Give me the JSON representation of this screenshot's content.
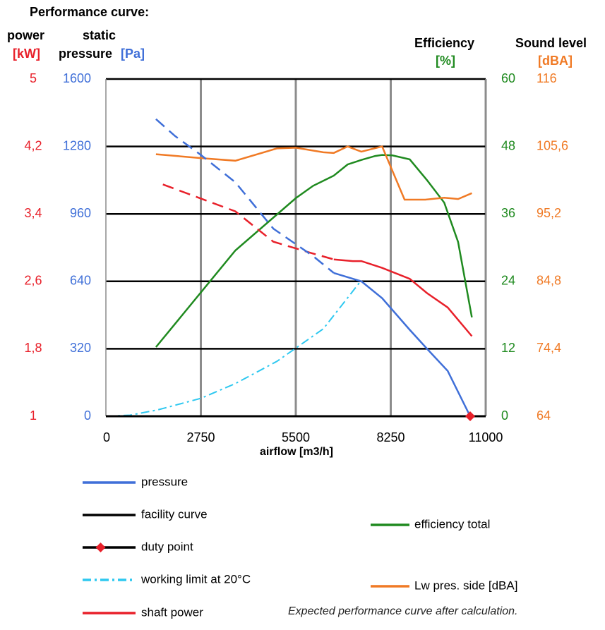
{
  "chart_data": {
    "type": "line",
    "title": "Performance curve:",
    "footer_note": "Expected performance curve after calculation.",
    "xlabel": "airflow [m3/h]",
    "x_ticks": [
      "0",
      "2750",
      "5500",
      "8250",
      "11000"
    ],
    "xlim": [
      0,
      11000
    ],
    "axes": {
      "power": {
        "label_line1": "power",
        "unit": "[kW]",
        "ticks": [
          "5",
          "4,2",
          "3,4",
          "2,6",
          "1,8",
          "1"
        ],
        "range": [
          1,
          5
        ],
        "color": "#e8202a"
      },
      "pressure": {
        "label_line1": "static",
        "label_line2": "pressure",
        "unit": "[Pa]",
        "ticks": [
          "1600",
          "1280",
          "960",
          "640",
          "320",
          "0"
        ],
        "range": [
          0,
          1600
        ],
        "color": "#3f6fd8"
      },
      "efficiency": {
        "label_line1": "Efficiency",
        "unit": "[%]",
        "ticks": [
          "60",
          "48",
          "36",
          "24",
          "12",
          "0"
        ],
        "range": [
          0,
          60
        ],
        "color": "#1f8a1f"
      },
      "sound": {
        "label_line1": "Sound level",
        "unit": "[dBA]",
        "ticks": [
          "116",
          "105,6",
          "95,2",
          "84,8",
          "74,4",
          "64"
        ],
        "range": [
          64,
          116
        ],
        "color": "#f07a25"
      }
    },
    "grid": true,
    "series": [
      {
        "name": "pressure",
        "axis": "pressure",
        "color": "#3f6fd8",
        "x": [
          1450,
          2000,
          2750,
          3750,
          4850,
          6000,
          6600,
          7400,
          8000,
          8800,
          9300,
          9900,
          10550
        ],
        "y": [
          1410,
          1330,
          1240,
          1110,
          890,
          760,
          680,
          640,
          560,
          410,
          320,
          215,
          0
        ],
        "dashed_until_x": 6600
      },
      {
        "name": "facility curve",
        "axis": "pressure",
        "color": "#000000",
        "x": [
          0,
          11000
        ],
        "y": [
          0,
          0
        ]
      },
      {
        "name": "duty point",
        "axis": "pressure",
        "color": "#e8202a",
        "x": [
          10550
        ],
        "y": [
          0
        ]
      },
      {
        "name": "working limit at 20°C",
        "axis": "pressure",
        "color": "#2ec8f0",
        "x": [
          0,
          700,
          1500,
          2750,
          3750,
          4950,
          6300,
          7350
        ],
        "y": [
          0,
          5,
          30,
          85,
          155,
          260,
          415,
          635
        ]
      },
      {
        "name": "shaft power",
        "axis": "power",
        "color": "#e8202a",
        "x": [
          1650,
          3750,
          4850,
          6000,
          6600,
          7150,
          7400,
          8000,
          8800,
          9300,
          9900,
          10600
        ],
        "y": [
          3.75,
          3.43,
          3.07,
          2.93,
          2.86,
          2.84,
          2.84,
          2.76,
          2.63,
          2.46,
          2.29,
          1.95
        ],
        "dashed_until_x": 6600
      },
      {
        "name": "efficiency total",
        "axis": "efficiency",
        "color": "#1f8a1f",
        "x": [
          1450,
          3750,
          5500,
          6000,
          6600,
          7000,
          7400,
          7800,
          8000,
          8300,
          8800,
          9300,
          9800,
          10200,
          10600
        ],
        "y": [
          12.3,
          29.5,
          38.8,
          41.0,
          42.8,
          44.8,
          45.6,
          46.3,
          46.5,
          46.4,
          45.7,
          42.0,
          38.0,
          31.0,
          17.6
        ]
      },
      {
        "name": "Lw pres. side [dBA]",
        "axis": "sound",
        "color": "#f07a25",
        "x": [
          1450,
          2750,
          3750,
          4950,
          5500,
          6300,
          6600,
          7000,
          7400,
          8000,
          8650,
          9250,
          9800,
          10200,
          10600
        ],
        "y": [
          104.4,
          103.8,
          103.4,
          105.3,
          105.4,
          104.7,
          104.6,
          105.6,
          104.8,
          105.6,
          97.4,
          97.4,
          97.7,
          97.5,
          98.4
        ]
      }
    ],
    "legend": [
      {
        "label": "pressure",
        "style": "blue"
      },
      {
        "label": "facility curve",
        "style": "black"
      },
      {
        "label": "duty point",
        "style": "duty"
      },
      {
        "label": "working limit at 20°C",
        "style": "cyan"
      },
      {
        "label": "shaft power",
        "style": "red"
      },
      {
        "label": "efficiency total",
        "style": "green"
      },
      {
        "label": "Lw pres. side [dBA]",
        "style": "orange"
      }
    ]
  }
}
